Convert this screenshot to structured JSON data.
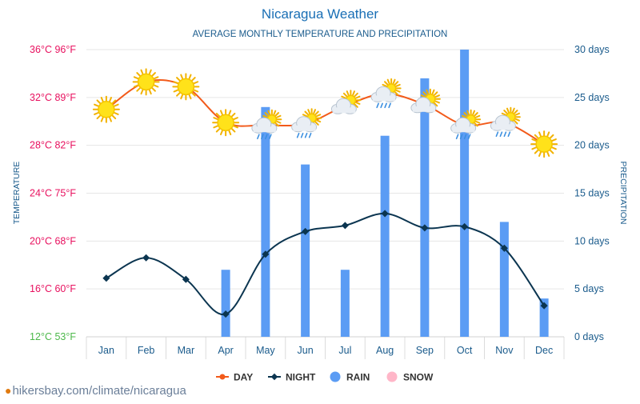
{
  "title": "Nicaragua Weather",
  "subtitle": "AVERAGE MONTHLY TEMPERATURE AND PRECIPITATION",
  "credit": "hikersbay.com/climate/nicaragua",
  "colors": {
    "title": "#1a6fb5",
    "day": "#f25a1a",
    "night": "#0b3550",
    "rain": "#5b9cf4",
    "snow": "#ffb6c8",
    "temp_axis": "#e8115f",
    "temp_axis_min": "#4cb84a",
    "precip_axis": "#1a5b8c",
    "month_labels": "#1a5b8c"
  },
  "chart_data": {
    "type": "line+bar",
    "categories": [
      "Jan",
      "Feb",
      "Mar",
      "Apr",
      "May",
      "Jun",
      "Jul",
      "Aug",
      "Sep",
      "Oct",
      "Nov",
      "Dec"
    ],
    "series": [
      {
        "name": "DAY",
        "axis": "left",
        "unit": "°C",
        "values": [
          31.0,
          33.3,
          32.9,
          29.9,
          29.7,
          29.8,
          31.3,
          32.3,
          31.4,
          29.7,
          29.9,
          28.1
        ]
      },
      {
        "name": "NIGHT",
        "axis": "left",
        "unit": "°C",
        "values": [
          16.9,
          18.6,
          16.8,
          13.9,
          18.9,
          20.8,
          21.3,
          22.3,
          21.1,
          21.2,
          19.4,
          14.6
        ]
      },
      {
        "name": "RAIN",
        "axis": "right",
        "unit": "days",
        "values": [
          0,
          0,
          0,
          7,
          24,
          18,
          7,
          21,
          27,
          30,
          12,
          4
        ]
      },
      {
        "name": "SNOW",
        "axis": "right",
        "unit": "days",
        "values": [
          0,
          0,
          0,
          0,
          0,
          0,
          0,
          0,
          0,
          0,
          0,
          0
        ]
      }
    ],
    "weather_icons": [
      "sun",
      "sun",
      "sun",
      "sun",
      "cloud-rain",
      "cloud-rain",
      "partly-cloudy",
      "cloud-rain",
      "partly-cloudy",
      "cloud-rain",
      "cloud-rain",
      "sun"
    ],
    "left_axis": {
      "label": "TEMPERATURE",
      "range": [
        12,
        36
      ],
      "ticks": [
        "12°C 53°F",
        "16°C 60°F",
        "20°C 68°F",
        "24°C 75°F",
        "28°C 82°F",
        "32°C 89°F",
        "36°C 96°F"
      ]
    },
    "right_axis": {
      "label": "PRECIPITATION",
      "range": [
        0,
        30
      ],
      "ticks": [
        "0 days",
        "5 days",
        "10 days",
        "15 days",
        "20 days",
        "25 days",
        "30 days"
      ]
    },
    "legend": [
      "DAY",
      "NIGHT",
      "RAIN",
      "SNOW"
    ],
    "legend_position": "bottom-center",
    "grid": true
  }
}
